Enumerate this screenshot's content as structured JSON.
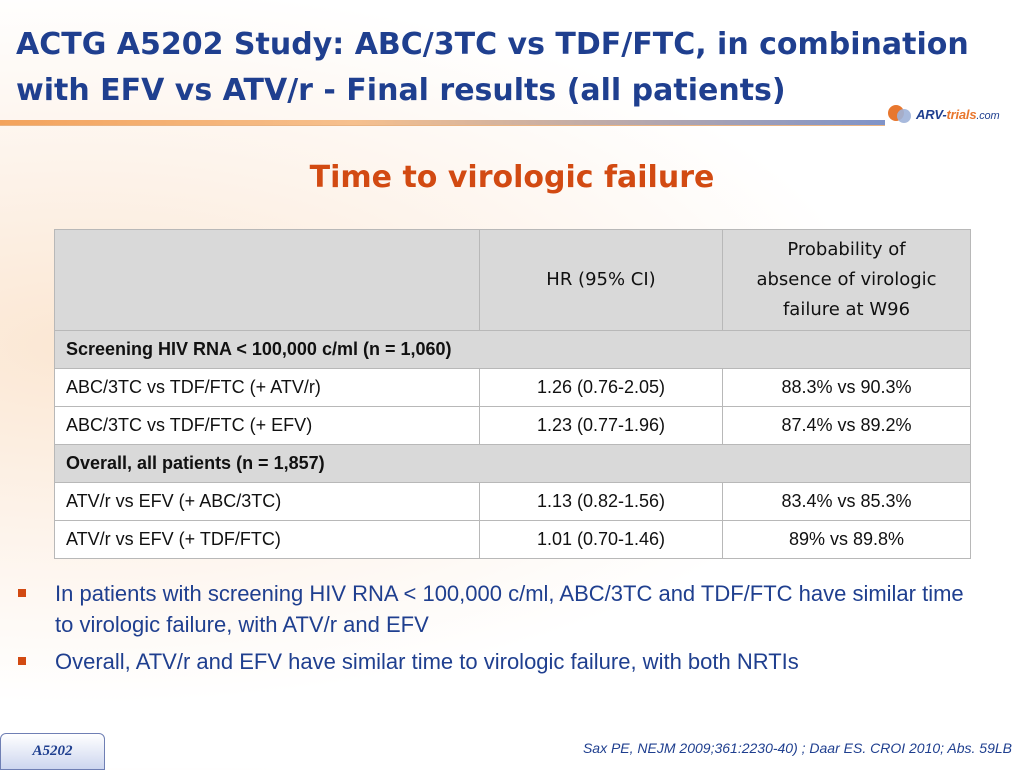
{
  "header": {
    "title_line1": "ACTG A5202 Study: ABC/3TC vs TDF/FTC, in combination",
    "title_line2": "with EFV vs ATV/r - Final results (all patients)",
    "logo": {
      "part1": "ARV-",
      "part2": "trials",
      "part3": ".com"
    }
  },
  "section_title": "Time to virologic failure",
  "table": {
    "headers": [
      "",
      "HR (95% CI)",
      "Probability of absence of virologic failure at W96"
    ],
    "header_lines": [
      "Probability of",
      "absence of virologic",
      "failure at W96"
    ],
    "sections": [
      {
        "label": "Screening HIV RNA < 100,000 c/ml (n = 1,060)",
        "rows": [
          {
            "comparison": "ABC/3TC vs TDF/FTC (+ ATV/r)",
            "hr": "1.26 (0.76-2.05)",
            "probability": "88.3% vs 90.3%"
          },
          {
            "comparison": "ABC/3TC vs TDF/FTC (+ EFV)",
            "hr": "1.23 (0.77-1.96)",
            "probability": "87.4% vs 89.2%"
          }
        ]
      },
      {
        "label": "Overall, all patients (n = 1,857)",
        "rows": [
          {
            "comparison": "ATV/r vs EFV (+ ABC/3TC)",
            "hr": "1.13 (0.82-1.56)",
            "probability": "83.4% vs 85.3%"
          },
          {
            "comparison": "ATV/r vs EFV (+ TDF/FTC)",
            "hr": "1.01 (0.70-1.46)",
            "probability": "89% vs 89.8%"
          }
        ]
      }
    ]
  },
  "bullets": [
    "In patients with screening HIV RNA < 100,000 c/ml, ABC/3TC and TDF/FTC have similar time to virologic failure, with ATV/r and EFV",
    "Overall, ATV/r and EFV have similar time to virologic failure, with both NRTIs"
  ],
  "footer": {
    "tag": "A5202",
    "reference": "Sax PE, NEJM 2009;361:2230-40) ; Daar ES. CROI 2010; Abs. 59LB"
  },
  "colors": {
    "title": "#1f3f8f",
    "subtitle": "#d24a12",
    "bullet_marker": "#d24a12",
    "table_header_bg": "#d9d9d9"
  }
}
